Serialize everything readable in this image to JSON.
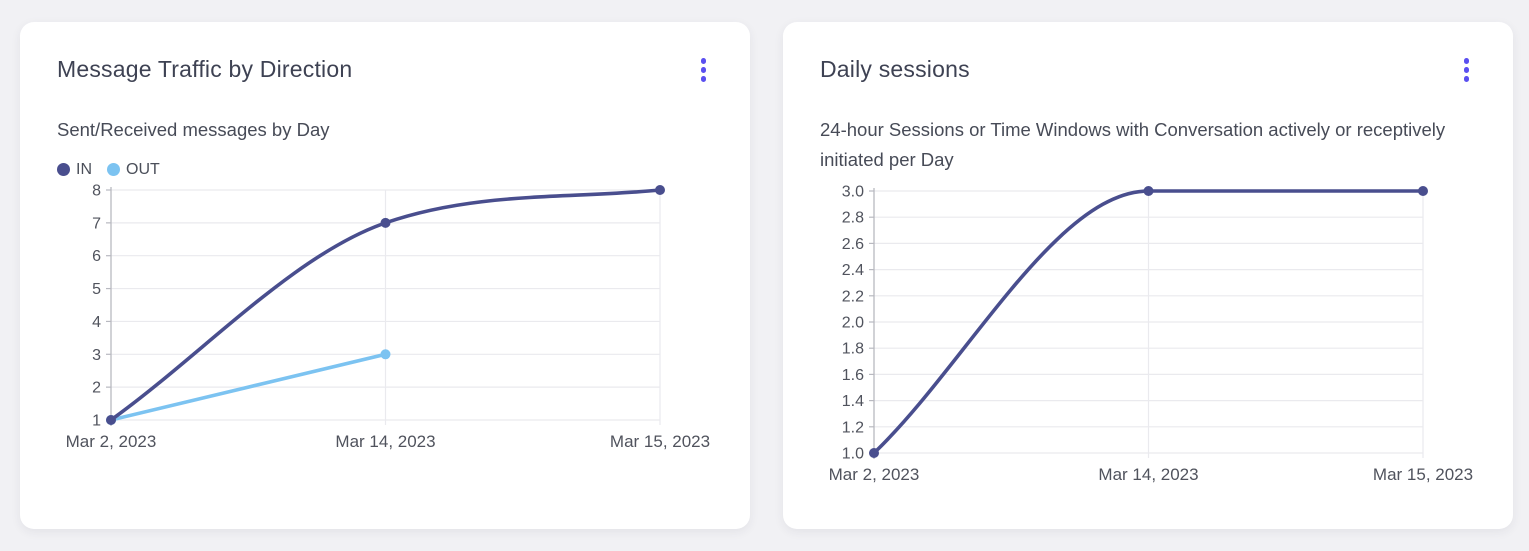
{
  "cards": [
    {
      "title": "Message Traffic by Direction",
      "subtitle": "Sent/Received messages by Day",
      "menu_icon": "kebab-menu"
    },
    {
      "title": "Daily sessions",
      "subtitle": "24-hour Sessions or Time Windows with Conversation actively or receptively initiated per Day",
      "menu_icon": "kebab-menu"
    }
  ],
  "colors": {
    "menu_accent": "#5a4ff0",
    "grid": "#eaeaee",
    "axis": "#b8b9c0",
    "tick_text": "#50535d",
    "card_background": "#ffffff",
    "page_background": "#f1f1f4"
  },
  "chart_data": [
    {
      "type": "line",
      "title": "Message Traffic by Direction",
      "subtitle": "Sent/Received messages by Day",
      "categories": [
        "Mar 2, 2023",
        "Mar 14, 2023",
        "Mar 15, 2023"
      ],
      "series": [
        {
          "name": "IN",
          "color": "#494e8e",
          "values": [
            1,
            7,
            8
          ]
        },
        {
          "name": "OUT",
          "color": "#7cc3f1",
          "values": [
            1,
            3,
            null
          ]
        }
      ],
      "ylim": [
        1,
        8
      ],
      "yticks": [
        1,
        2,
        3,
        4,
        5,
        6,
        7,
        8
      ],
      "ytick_labels": [
        "1",
        "2",
        "3",
        "4",
        "5",
        "6",
        "7",
        "8"
      ],
      "legend_position": "top-left",
      "grid": true,
      "curve": "monotone",
      "markers": true
    },
    {
      "type": "line",
      "title": "Daily sessions",
      "subtitle": "24-hour Sessions or Time Windows with Conversation actively or receptively initiated per Day",
      "categories": [
        "Mar 2, 2023",
        "Mar 14, 2023",
        "Mar 15, 2023"
      ],
      "series": [
        {
          "name": "Daily sessions",
          "color": "#494e8e",
          "values": [
            1.0,
            3.0,
            3.0
          ]
        }
      ],
      "ylim": [
        1.0,
        3.0
      ],
      "yticks": [
        1.0,
        1.2,
        1.4,
        1.6,
        1.8,
        2.0,
        2.2,
        2.4,
        2.6,
        2.8,
        3.0
      ],
      "ytick_labels": [
        "1.0",
        "1.2",
        "1.4",
        "1.6",
        "1.8",
        "2.0",
        "2.2",
        "2.4",
        "2.6",
        "2.8",
        "3.0"
      ],
      "legend_position": "none",
      "grid": true,
      "curve": "monotone",
      "markers": true
    }
  ]
}
